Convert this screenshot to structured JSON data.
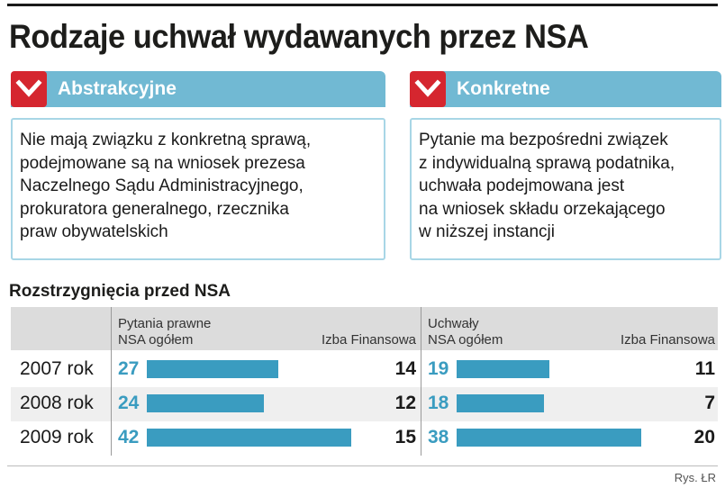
{
  "title": "Rodzaje uchwał wydawanych przez NSA",
  "cards": [
    {
      "title": "Abstrakcyjne",
      "icon": "chevron-down-icon",
      "lines": [
        "Nie mają związku z konkretną sprawą,",
        "podejmowane są na wniosek prezesa",
        "Naczelnego Sądu Administracyjnego,",
        "prokuratora generalnego, rzecznika",
        "praw obywatelskich"
      ]
    },
    {
      "title": "Konkretne",
      "icon": "chevron-down-icon",
      "lines": [
        "Pytanie ma bezpośredni związek",
        "z indywidualną sprawą podatnika,",
        "uchwała podejmowana jest",
        "na wniosek składu orzekającego",
        "w niższej instancji"
      ]
    }
  ],
  "subtitle": "Rozstrzygnięcia przed NSA",
  "credit": "Rys. ŁR",
  "colors": {
    "bar": "#3a9cc0",
    "card_header": "#71b9d3",
    "icon_box": "#d5262f"
  },
  "chart_data": {
    "type": "bar",
    "orientation": "horizontal",
    "categories": [
      "2007 rok",
      "2008 rok",
      "2009 rok"
    ],
    "groups": [
      {
        "header_line1": "Pytania prawne",
        "header_line2": "NSA ogółem",
        "right_header": "Izba Finansowa",
        "values": [
          27,
          24,
          42
        ],
        "izba_finansowa": [
          14,
          12,
          15
        ]
      },
      {
        "header_line1": "Uchwały",
        "header_line2": "NSA ogółem",
        "right_header": "Izba Finansowa",
        "values": [
          19,
          18,
          38
        ],
        "izba_finansowa": [
          11,
          7,
          20
        ]
      }
    ]
  }
}
